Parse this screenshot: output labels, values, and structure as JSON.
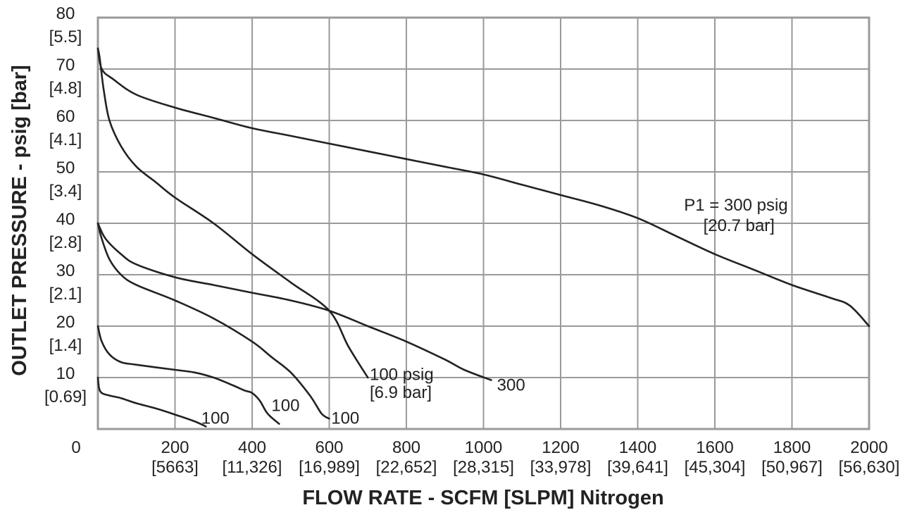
{
  "chart_data": {
    "type": "line",
    "title": "",
    "xlabel": "FLOW RATE - SCFM [SLPM] Nitrogen",
    "ylabel": "OUTLET PRESSURE - psig [bar]",
    "xlim": [
      0,
      2000
    ],
    "ylim": [
      0,
      80
    ],
    "grid": true,
    "origin_label": "0",
    "x_ticks": [
      {
        "value": 200,
        "label": "200",
        "sub": "[5663]"
      },
      {
        "value": 400,
        "label": "400",
        "sub": "[11,326]"
      },
      {
        "value": 600,
        "label": "600",
        "sub": "[16,989]"
      },
      {
        "value": 800,
        "label": "800",
        "sub": "[22,652]"
      },
      {
        "value": 1000,
        "label": "1000",
        "sub": "[28,315]"
      },
      {
        "value": 1200,
        "label": "1200",
        "sub": "[33,978]"
      },
      {
        "value": 1400,
        "label": "1400",
        "sub": "[39,641]"
      },
      {
        "value": 1600,
        "label": "1600",
        "sub": "[45,304]"
      },
      {
        "value": 1800,
        "label": "1800",
        "sub": "[50,967]"
      },
      {
        "value": 2000,
        "label": "2000",
        "sub": "[56,630]"
      }
    ],
    "y_ticks": [
      {
        "value": 10,
        "label": "10",
        "sub": "[0.69]"
      },
      {
        "value": 20,
        "label": "20",
        "sub": "[1.4]"
      },
      {
        "value": 30,
        "label": "30",
        "sub": "[2.1]"
      },
      {
        "value": 40,
        "label": "40",
        "sub": "[2.8]"
      },
      {
        "value": 50,
        "label": "50",
        "sub": "[3.4]"
      },
      {
        "value": 60,
        "label": "60",
        "sub": "[4.1]"
      },
      {
        "value": 70,
        "label": "70",
        "sub": "[4.8]"
      },
      {
        "value": 80,
        "label": "80",
        "sub": "[5.5]"
      }
    ],
    "series": [
      {
        "x": [
          0,
          10,
          40,
          100,
          200,
          300,
          400,
          500,
          600,
          700,
          800,
          900,
          1000,
          1100,
          1200,
          1300,
          1400,
          1500,
          1600,
          1700,
          1800,
          1900,
          1950,
          2000
        ],
        "y": [
          74,
          70,
          68,
          65,
          62.5,
          60.5,
          58.5,
          57,
          55.5,
          54,
          52.5,
          51,
          49.5,
          47.5,
          45.5,
          43.5,
          41,
          37.5,
          34,
          31,
          28,
          25.5,
          24,
          20
        ]
      },
      {
        "x": [
          0,
          5,
          15,
          30,
          60,
          100,
          150,
          200,
          300,
          400,
          500,
          600,
          650,
          700
        ],
        "y": [
          74,
          72,
          66,
          60,
          55,
          51,
          48,
          45,
          40,
          34,
          28.5,
          23,
          16,
          10
        ]
      },
      {
        "x": [
          0,
          20,
          60,
          100,
          200,
          300,
          400,
          500,
          600,
          700,
          800,
          900,
          950,
          1020
        ],
        "y": [
          40,
          37,
          34,
          32,
          29.5,
          28,
          26.5,
          25,
          23,
          20,
          17,
          13.5,
          11.5,
          9.5
        ]
      },
      {
        "x": [
          0,
          10,
          30,
          60,
          100,
          200,
          300,
          400,
          450,
          500,
          550,
          580,
          600
        ],
        "y": [
          40,
          37,
          33,
          30,
          28,
          25,
          21.5,
          17,
          14,
          11,
          6.5,
          3,
          2
        ]
      },
      {
        "x": [
          0,
          10,
          30,
          60,
          100,
          200,
          250,
          300,
          350,
          380,
          400,
          420,
          440,
          470
        ],
        "y": [
          20,
          17,
          14.5,
          13,
          12.5,
          11.5,
          11,
          10,
          8.5,
          7.5,
          7,
          5.5,
          3,
          1
        ]
      },
      {
        "x": [
          0,
          3,
          10,
          30,
          60,
          100,
          150,
          200,
          250,
          280
        ],
        "y": [
          10,
          8,
          7,
          6.5,
          6,
          5,
          4,
          2.8,
          1.5,
          0.5
        ]
      }
    ],
    "annotations": [
      {
        "label": "P1 = 300 psig",
        "x": 1520,
        "y": 42.5
      },
      {
        "label": "[20.7 bar]",
        "x": 1570,
        "y": 38.5
      },
      {
        "label": "100 psig",
        "x": 705,
        "y": 9.5
      },
      {
        "label": "[6.9 bar]",
        "x": 705,
        "y": 6
      },
      {
        "label": "300",
        "x": 1035,
        "y": 7.5
      },
      {
        "label": "100",
        "x": 605,
        "y": 1
      },
      {
        "label": "100",
        "x": 450,
        "y": 3.5
      },
      {
        "label": "100",
        "x": 268,
        "y": 1
      }
    ]
  }
}
